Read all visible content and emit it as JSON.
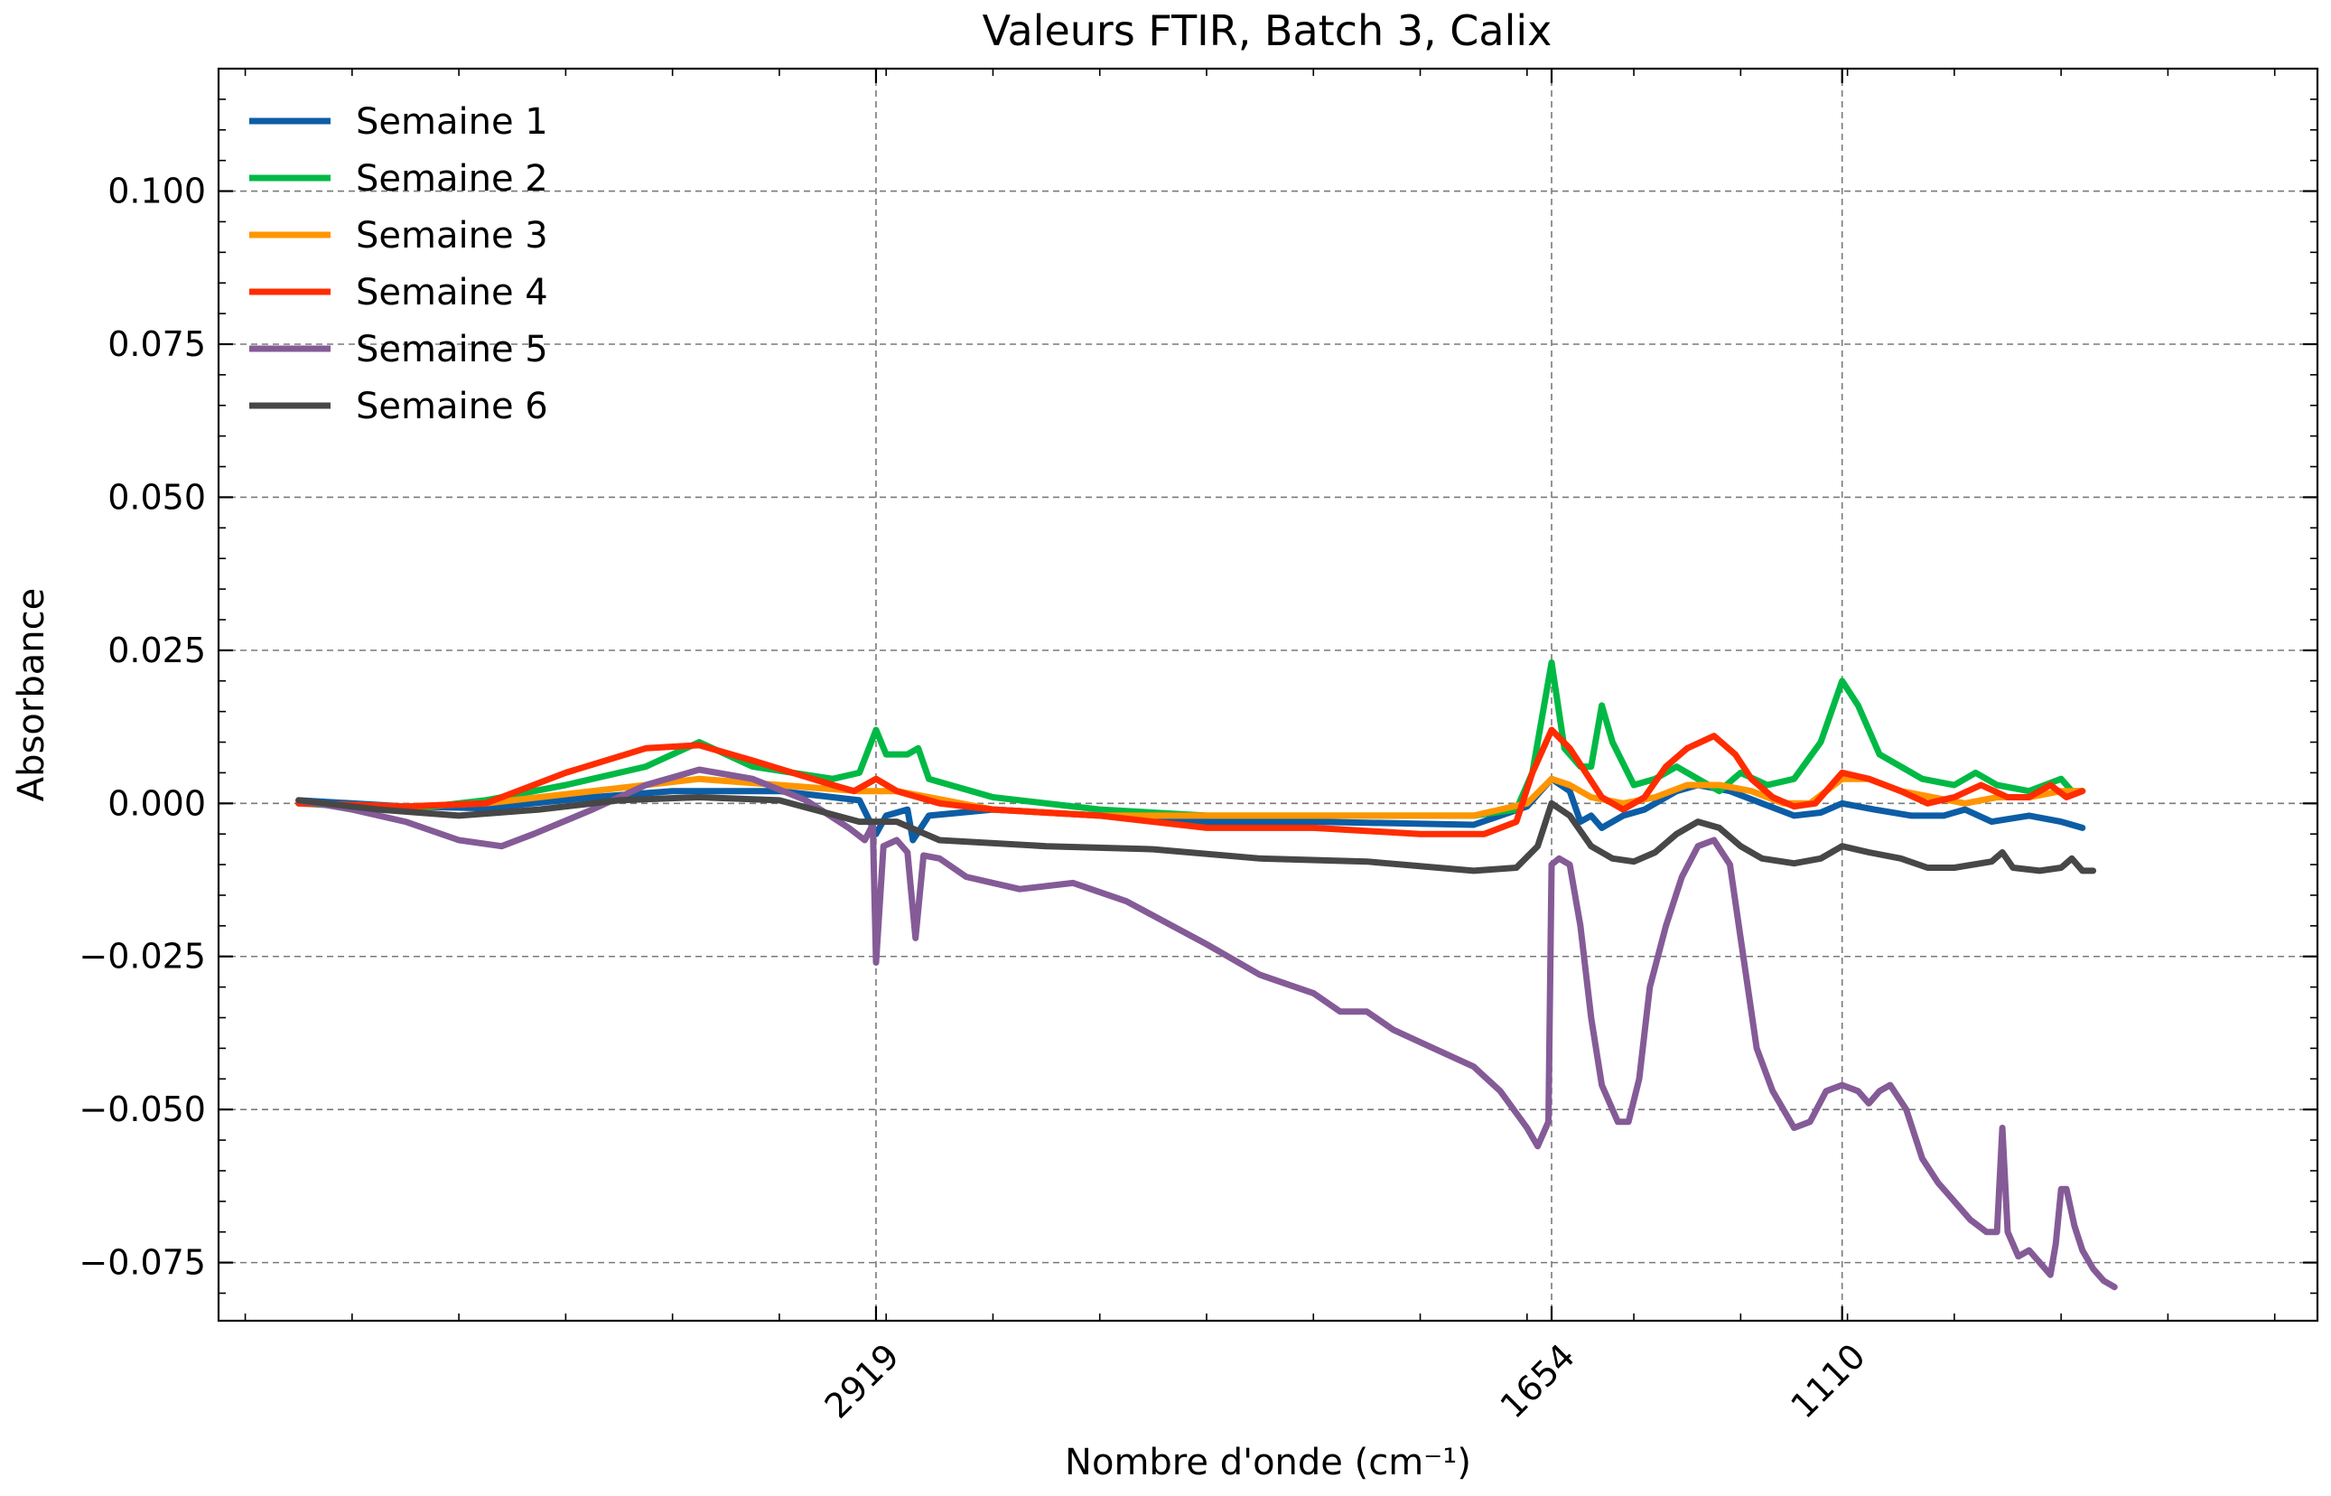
{
  "chart_data": {
    "type": "line",
    "title": "Valeurs FTIR, Batch 3, Calix",
    "xlabel": "Nombre d'onde (cm⁻¹)",
    "ylabel": "Absorbance",
    "x_inverted": true,
    "xlim": [
      4150,
      220
    ],
    "ylim": [
      -0.0845,
      0.12
    ],
    "x_ticks": [
      2919,
      1654,
      1110
    ],
    "x_tick_labels": [
      "2919",
      "1654",
      "1110"
    ],
    "y_ticks": [
      0.1,
      0.075,
      0.05,
      0.025,
      0.0,
      -0.025,
      -0.05,
      -0.075
    ],
    "y_tick_labels": [
      "0.100",
      "0.075",
      "0.050",
      "0.025",
      "0.000",
      "−0.025",
      "−0.050",
      "−0.075"
    ],
    "grid": true,
    "legend_position": "top-left",
    "series": [
      {
        "name": "Semaine 1",
        "color": "#0C5DA5",
        "points": [
          [
            4000,
            0.0005
          ],
          [
            3800,
            -0.0005
          ],
          [
            3650,
            -0.0008
          ],
          [
            3450,
            0.001
          ],
          [
            3300,
            0.002
          ],
          [
            3100,
            0.002
          ],
          [
            2950,
            0.0005
          ],
          [
            2919,
            -0.005
          ],
          [
            2900,
            -0.002
          ],
          [
            2860,
            -0.001
          ],
          [
            2850,
            -0.006
          ],
          [
            2820,
            -0.002
          ],
          [
            2700,
            -0.001
          ],
          [
            2500,
            -0.002
          ],
          [
            2300,
            -0.003
          ],
          [
            2100,
            -0.003
          ],
          [
            1800,
            -0.0035
          ],
          [
            1700,
            -0.0005
          ],
          [
            1654,
            0.004
          ],
          [
            1620,
            0.002
          ],
          [
            1600,
            -0.003
          ],
          [
            1580,
            -0.002
          ],
          [
            1560,
            -0.004
          ],
          [
            1520,
            -0.002
          ],
          [
            1480,
            -0.001
          ],
          [
            1420,
            0.002
          ],
          [
            1380,
            0.003
          ],
          [
            1320,
            0.002
          ],
          [
            1260,
            0.0
          ],
          [
            1200,
            -0.002
          ],
          [
            1150,
            -0.0015
          ],
          [
            1110,
            0.0
          ],
          [
            1050,
            -0.001
          ],
          [
            980,
            -0.002
          ],
          [
            920,
            -0.002
          ],
          [
            880,
            -0.001
          ],
          [
            830,
            -0.003
          ],
          [
            760,
            -0.002
          ],
          [
            700,
            -0.003
          ],
          [
            660,
            -0.004
          ]
        ]
      },
      {
        "name": "Semaine 2",
        "color": "#00B945",
        "points": [
          [
            4000,
            0.0
          ],
          [
            3800,
            -0.001
          ],
          [
            3650,
            0.0005
          ],
          [
            3500,
            0.003
          ],
          [
            3350,
            0.006
          ],
          [
            3250,
            0.01
          ],
          [
            3150,
            0.006
          ],
          [
            3000,
            0.004
          ],
          [
            2950,
            0.005
          ],
          [
            2919,
            0.012
          ],
          [
            2900,
            0.008
          ],
          [
            2860,
            0.008
          ],
          [
            2840,
            0.009
          ],
          [
            2820,
            0.004
          ],
          [
            2700,
            0.001
          ],
          [
            2500,
            -0.001
          ],
          [
            2300,
            -0.002
          ],
          [
            2100,
            -0.002
          ],
          [
            1800,
            -0.002
          ],
          [
            1720,
            -0.001
          ],
          [
            1690,
            0.005
          ],
          [
            1654,
            0.023
          ],
          [
            1630,
            0.009
          ],
          [
            1600,
            0.006
          ],
          [
            1580,
            0.006
          ],
          [
            1560,
            0.016
          ],
          [
            1540,
            0.01
          ],
          [
            1500,
            0.003
          ],
          [
            1460,
            0.004
          ],
          [
            1420,
            0.006
          ],
          [
            1380,
            0.004
          ],
          [
            1340,
            0.002
          ],
          [
            1300,
            0.005
          ],
          [
            1250,
            0.003
          ],
          [
            1200,
            0.004
          ],
          [
            1150,
            0.01
          ],
          [
            1110,
            0.02
          ],
          [
            1080,
            0.016
          ],
          [
            1040,
            0.008
          ],
          [
            1000,
            0.006
          ],
          [
            960,
            0.004
          ],
          [
            900,
            0.003
          ],
          [
            860,
            0.005
          ],
          [
            820,
            0.003
          ],
          [
            760,
            0.002
          ],
          [
            700,
            0.004
          ],
          [
            680,
            0.002
          ],
          [
            660,
            0.002
          ]
        ]
      },
      {
        "name": "Semaine 3",
        "color": "#FF9500",
        "points": [
          [
            4000,
            0.0
          ],
          [
            3800,
            -0.0005
          ],
          [
            3650,
            0.0
          ],
          [
            3450,
            0.002
          ],
          [
            3250,
            0.004
          ],
          [
            3100,
            0.003
          ],
          [
            2950,
            0.002
          ],
          [
            2919,
            0.002
          ],
          [
            2880,
            0.002
          ],
          [
            2700,
            -0.001
          ],
          [
            2500,
            -0.002
          ],
          [
            2300,
            -0.002
          ],
          [
            2100,
            -0.002
          ],
          [
            1800,
            -0.002
          ],
          [
            1700,
            0.0
          ],
          [
            1654,
            0.004
          ],
          [
            1620,
            0.003
          ],
          [
            1580,
            0.001
          ],
          [
            1520,
            0.0
          ],
          [
            1460,
            0.001
          ],
          [
            1400,
            0.003
          ],
          [
            1340,
            0.003
          ],
          [
            1280,
            0.002
          ],
          [
            1220,
            0.0
          ],
          [
            1170,
            0.0
          ],
          [
            1110,
            0.004
          ],
          [
            1060,
            0.004
          ],
          [
            1000,
            0.002
          ],
          [
            940,
            0.001
          ],
          [
            880,
            0.0
          ],
          [
            820,
            0.001
          ],
          [
            760,
            0.001
          ],
          [
            700,
            0.002
          ],
          [
            660,
            0.002
          ]
        ]
      },
      {
        "name": "Semaine 4",
        "color": "#FF2C00",
        "points": [
          [
            4000,
            0.0
          ],
          [
            3800,
            -0.0005
          ],
          [
            3650,
            0.0
          ],
          [
            3500,
            0.005
          ],
          [
            3350,
            0.009
          ],
          [
            3250,
            0.0095
          ],
          [
            3150,
            0.007
          ],
          [
            3000,
            0.003
          ],
          [
            2960,
            0.002
          ],
          [
            2919,
            0.004
          ],
          [
            2880,
            0.002
          ],
          [
            2800,
            0.0
          ],
          [
            2700,
            -0.001
          ],
          [
            2500,
            -0.002
          ],
          [
            2300,
            -0.004
          ],
          [
            2100,
            -0.004
          ],
          [
            1900,
            -0.005
          ],
          [
            1780,
            -0.005
          ],
          [
            1720,
            -0.003
          ],
          [
            1690,
            0.005
          ],
          [
            1654,
            0.012
          ],
          [
            1620,
            0.009
          ],
          [
            1590,
            0.005
          ],
          [
            1560,
            0.001
          ],
          [
            1520,
            -0.001
          ],
          [
            1480,
            0.001
          ],
          [
            1440,
            0.006
          ],
          [
            1400,
            0.009
          ],
          [
            1350,
            0.011
          ],
          [
            1310,
            0.008
          ],
          [
            1280,
            0.004
          ],
          [
            1240,
            0.001
          ],
          [
            1200,
            -0.0005
          ],
          [
            1160,
            0.0
          ],
          [
            1110,
            0.005
          ],
          [
            1060,
            0.004
          ],
          [
            1000,
            0.002
          ],
          [
            950,
            0.0
          ],
          [
            900,
            0.001
          ],
          [
            850,
            0.003
          ],
          [
            800,
            0.001
          ],
          [
            760,
            0.001
          ],
          [
            720,
            0.003
          ],
          [
            690,
            0.001
          ],
          [
            660,
            0.002
          ]
        ]
      },
      {
        "name": "Semaine 5",
        "color": "#845B97",
        "points": [
          [
            4000,
            0.0005
          ],
          [
            3900,
            -0.001
          ],
          [
            3800,
            -0.003
          ],
          [
            3700,
            -0.006
          ],
          [
            3620,
            -0.007
          ],
          [
            3560,
            -0.005
          ],
          [
            3450,
            -0.001
          ],
          [
            3350,
            0.003
          ],
          [
            3250,
            0.0055
          ],
          [
            3150,
            0.004
          ],
          [
            3050,
            0.0005
          ],
          [
            2970,
            -0.004
          ],
          [
            2940,
            -0.006
          ],
          [
            2925,
            -0.0035
          ],
          [
            2919,
            -0.026
          ],
          [
            2905,
            -0.007
          ],
          [
            2880,
            -0.006
          ],
          [
            2860,
            -0.008
          ],
          [
            2845,
            -0.022
          ],
          [
            2830,
            -0.0085
          ],
          [
            2800,
            -0.009
          ],
          [
            2750,
            -0.012
          ],
          [
            2650,
            -0.014
          ],
          [
            2550,
            -0.013
          ],
          [
            2450,
            -0.016
          ],
          [
            2300,
            -0.023
          ],
          [
            2200,
            -0.028
          ],
          [
            2100,
            -0.031
          ],
          [
            2050,
            -0.034
          ],
          [
            2000,
            -0.034
          ],
          [
            1950,
            -0.037
          ],
          [
            1850,
            -0.041
          ],
          [
            1800,
            -0.043
          ],
          [
            1750,
            -0.047
          ],
          [
            1700,
            -0.053
          ],
          [
            1680,
            -0.056
          ],
          [
            1660,
            -0.052
          ],
          [
            1654,
            -0.01
          ],
          [
            1640,
            -0.009
          ],
          [
            1620,
            -0.01
          ],
          [
            1600,
            -0.02
          ],
          [
            1580,
            -0.035
          ],
          [
            1560,
            -0.046
          ],
          [
            1530,
            -0.052
          ],
          [
            1510,
            -0.052
          ],
          [
            1490,
            -0.045
          ],
          [
            1470,
            -0.03
          ],
          [
            1440,
            -0.02
          ],
          [
            1410,
            -0.012
          ],
          [
            1380,
            -0.007
          ],
          [
            1350,
            -0.006
          ],
          [
            1320,
            -0.01
          ],
          [
            1300,
            -0.022
          ],
          [
            1270,
            -0.04
          ],
          [
            1240,
            -0.047
          ],
          [
            1200,
            -0.053
          ],
          [
            1170,
            -0.052
          ],
          [
            1140,
            -0.047
          ],
          [
            1110,
            -0.046
          ],
          [
            1080,
            -0.047
          ],
          [
            1060,
            -0.049
          ],
          [
            1040,
            -0.047
          ],
          [
            1020,
            -0.046
          ],
          [
            990,
            -0.05
          ],
          [
            960,
            -0.058
          ],
          [
            930,
            -0.062
          ],
          [
            900,
            -0.065
          ],
          [
            870,
            -0.068
          ],
          [
            840,
            -0.07
          ],
          [
            820,
            -0.07
          ],
          [
            810,
            -0.053
          ],
          [
            800,
            -0.07
          ],
          [
            780,
            -0.074
          ],
          [
            760,
            -0.073
          ],
          [
            740,
            -0.075
          ],
          [
            720,
            -0.077
          ],
          [
            710,
            -0.072
          ],
          [
            700,
            -0.063
          ],
          [
            690,
            -0.063
          ],
          [
            675,
            -0.069
          ],
          [
            660,
            -0.073
          ],
          [
            640,
            -0.076
          ],
          [
            620,
            -0.078
          ],
          [
            600,
            -0.079
          ]
        ]
      },
      {
        "name": "Semaine 6",
        "color": "#474747",
        "points": [
          [
            4000,
            0.0005
          ],
          [
            3850,
            -0.001
          ],
          [
            3700,
            -0.002
          ],
          [
            3550,
            -0.001
          ],
          [
            3400,
            0.0005
          ],
          [
            3250,
            0.001
          ],
          [
            3100,
            0.0005
          ],
          [
            2950,
            -0.003
          ],
          [
            2919,
            -0.003
          ],
          [
            2880,
            -0.003
          ],
          [
            2800,
            -0.006
          ],
          [
            2600,
            -0.007
          ],
          [
            2400,
            -0.0075
          ],
          [
            2200,
            -0.009
          ],
          [
            2000,
            -0.0095
          ],
          [
            1800,
            -0.011
          ],
          [
            1720,
            -0.0105
          ],
          [
            1680,
            -0.007
          ],
          [
            1654,
            0.0
          ],
          [
            1620,
            -0.002
          ],
          [
            1580,
            -0.007
          ],
          [
            1540,
            -0.009
          ],
          [
            1500,
            -0.0095
          ],
          [
            1460,
            -0.008
          ],
          [
            1420,
            -0.005
          ],
          [
            1380,
            -0.003
          ],
          [
            1340,
            -0.004
          ],
          [
            1300,
            -0.007
          ],
          [
            1260,
            -0.009
          ],
          [
            1200,
            -0.0098
          ],
          [
            1150,
            -0.009
          ],
          [
            1110,
            -0.007
          ],
          [
            1060,
            -0.008
          ],
          [
            1000,
            -0.009
          ],
          [
            950,
            -0.0105
          ],
          [
            900,
            -0.0105
          ],
          [
            830,
            -0.0095
          ],
          [
            810,
            -0.008
          ],
          [
            790,
            -0.0105
          ],
          [
            740,
            -0.011
          ],
          [
            700,
            -0.0105
          ],
          [
            680,
            -0.009
          ],
          [
            660,
            -0.011
          ],
          [
            640,
            -0.011
          ]
        ]
      }
    ]
  }
}
